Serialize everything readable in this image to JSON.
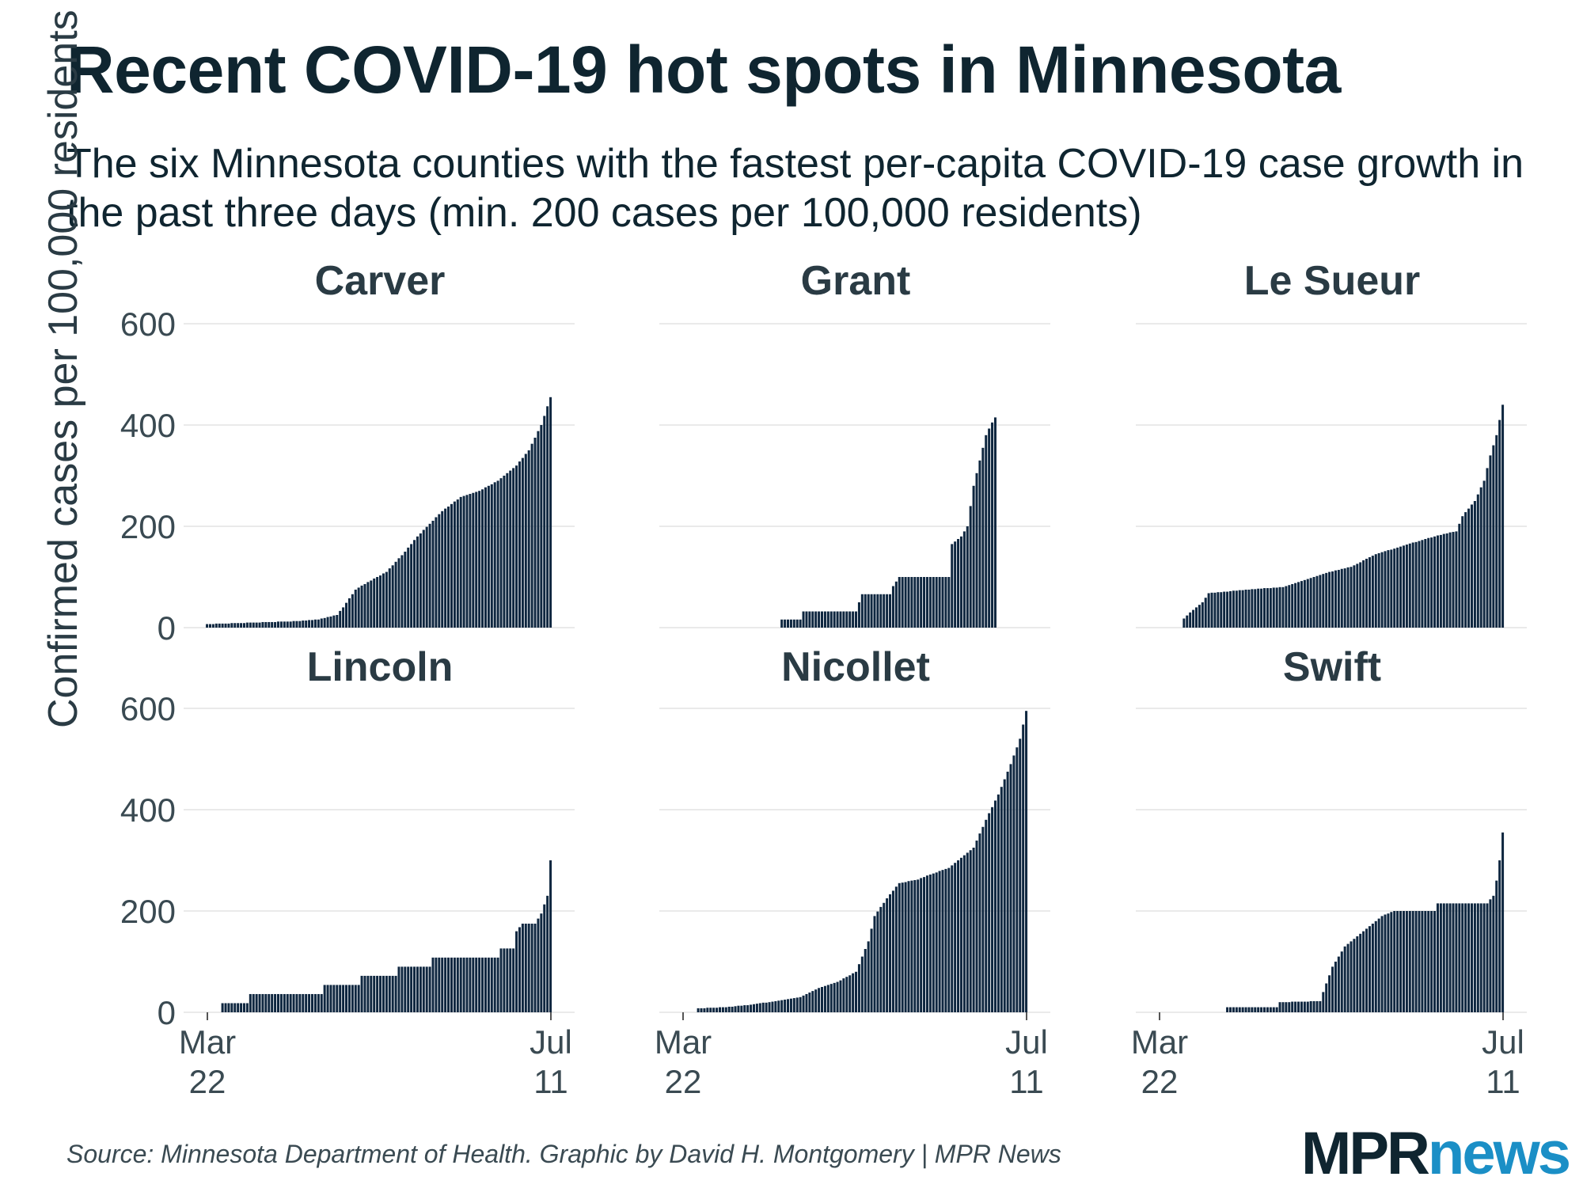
{
  "title": "Recent COVID-19 hot spots in Minnesota",
  "subtitle": "The six Minnesota counties with the fastest per-capita COVID-19 case growth in the past three days (min. 200 cases per 100,000 residents)",
  "source": "Source: Minnesota Department of Health. Graphic by David H. Montgomery | MPR News",
  "logo": {
    "part1": "MPR",
    "part2": "news"
  },
  "colors": {
    "bar": "#0f2740",
    "grid": "#e3e3e3",
    "axis_text": "#3a4a52",
    "panel_title": "#2a3b44",
    "accent": "#1b8fc6"
  },
  "chart_data": {
    "type": "bar",
    "ylabel": "Confirmed cases per 100,000 residents",
    "ylim": [
      0,
      600
    ],
    "yticks": [
      0,
      200,
      400,
      600
    ],
    "xrange_days": [
      0,
      111
    ],
    "xticks": [
      {
        "day": 0,
        "line1": "Mar",
        "line2": "22"
      },
      {
        "day": 111,
        "line1": "Jul",
        "line2": "11"
      }
    ],
    "layout": {
      "rows": 2,
      "cols": 3,
      "shared_y_axis": true
    },
    "series": [
      {
        "name": "Carver",
        "knots": [
          [
            0,
            7
          ],
          [
            10,
            9
          ],
          [
            20,
            11
          ],
          [
            30,
            13
          ],
          [
            36,
            16
          ],
          [
            42,
            25
          ],
          [
            44,
            40
          ],
          [
            48,
            75
          ],
          [
            52,
            90
          ],
          [
            58,
            110
          ],
          [
            64,
            150
          ],
          [
            68,
            180
          ],
          [
            72,
            205
          ],
          [
            76,
            230
          ],
          [
            82,
            258
          ],
          [
            88,
            270
          ],
          [
            94,
            290
          ],
          [
            100,
            320
          ],
          [
            104,
            350
          ],
          [
            108,
            400
          ],
          [
            111,
            455
          ]
        ]
      },
      {
        "name": "Grant",
        "knots": [
          [
            31,
            0
          ],
          [
            32,
            16
          ],
          [
            38,
            16
          ],
          [
            39,
            32
          ],
          [
            56,
            32
          ],
          [
            57,
            50
          ],
          [
            58,
            66
          ],
          [
            67,
            66
          ],
          [
            68,
            82
          ],
          [
            70,
            100
          ],
          [
            86,
            100
          ],
          [
            87,
            165
          ],
          [
            90,
            180
          ],
          [
            92,
            200
          ],
          [
            94,
            280
          ],
          [
            96,
            330
          ],
          [
            98,
            380
          ],
          [
            100,
            405
          ],
          [
            101,
            415
          ]
        ]
      },
      {
        "name": "Le Sueur",
        "knots": [
          [
            7,
            0
          ],
          [
            8,
            18
          ],
          [
            10,
            30
          ],
          [
            14,
            50
          ],
          [
            16,
            68
          ],
          [
            30,
            76
          ],
          [
            40,
            80
          ],
          [
            46,
            92
          ],
          [
            54,
            108
          ],
          [
            62,
            120
          ],
          [
            70,
            145
          ],
          [
            78,
            160
          ],
          [
            86,
            175
          ],
          [
            92,
            185
          ],
          [
            96,
            190
          ],
          [
            98,
            220
          ],
          [
            102,
            250
          ],
          [
            105,
            290
          ],
          [
            107,
            340
          ],
          [
            109,
            380
          ],
          [
            111,
            440
          ]
        ]
      },
      {
        "name": "Lincoln",
        "knots": [
          [
            4,
            0
          ],
          [
            5,
            18
          ],
          [
            13,
            18
          ],
          [
            14,
            36
          ],
          [
            37,
            36
          ],
          [
            38,
            54
          ],
          [
            49,
            54
          ],
          [
            50,
            72
          ],
          [
            61,
            72
          ],
          [
            62,
            90
          ],
          [
            72,
            90
          ],
          [
            73,
            108
          ],
          [
            94,
            108
          ],
          [
            95,
            126
          ],
          [
            99,
            126
          ],
          [
            100,
            160
          ],
          [
            102,
            175
          ],
          [
            106,
            175
          ],
          [
            108,
            195
          ],
          [
            110,
            230
          ],
          [
            111,
            300
          ]
        ]
      },
      {
        "name": "Nicollet",
        "knots": [
          [
            5,
            8
          ],
          [
            14,
            10
          ],
          [
            22,
            15
          ],
          [
            30,
            22
          ],
          [
            38,
            30
          ],
          [
            44,
            48
          ],
          [
            50,
            60
          ],
          [
            56,
            80
          ],
          [
            58,
            110
          ],
          [
            60,
            140
          ],
          [
            62,
            190
          ],
          [
            66,
            225
          ],
          [
            70,
            255
          ],
          [
            76,
            262
          ],
          [
            80,
            272
          ],
          [
            86,
            285
          ],
          [
            90,
            305
          ],
          [
            94,
            325
          ],
          [
            98,
            380
          ],
          [
            102,
            430
          ],
          [
            106,
            490
          ],
          [
            109,
            540
          ],
          [
            111,
            595
          ]
        ]
      },
      {
        "name": "Swift",
        "knots": [
          [
            21,
            0
          ],
          [
            22,
            10
          ],
          [
            38,
            10
          ],
          [
            39,
            20
          ],
          [
            52,
            22
          ],
          [
            53,
            40
          ],
          [
            56,
            90
          ],
          [
            60,
            130
          ],
          [
            64,
            150
          ],
          [
            68,
            170
          ],
          [
            72,
            190
          ],
          [
            76,
            200
          ],
          [
            89,
            200
          ],
          [
            90,
            215
          ],
          [
            106,
            215
          ],
          [
            108,
            230
          ],
          [
            109,
            260
          ],
          [
            110,
            300
          ],
          [
            111,
            355
          ]
        ]
      }
    ]
  }
}
